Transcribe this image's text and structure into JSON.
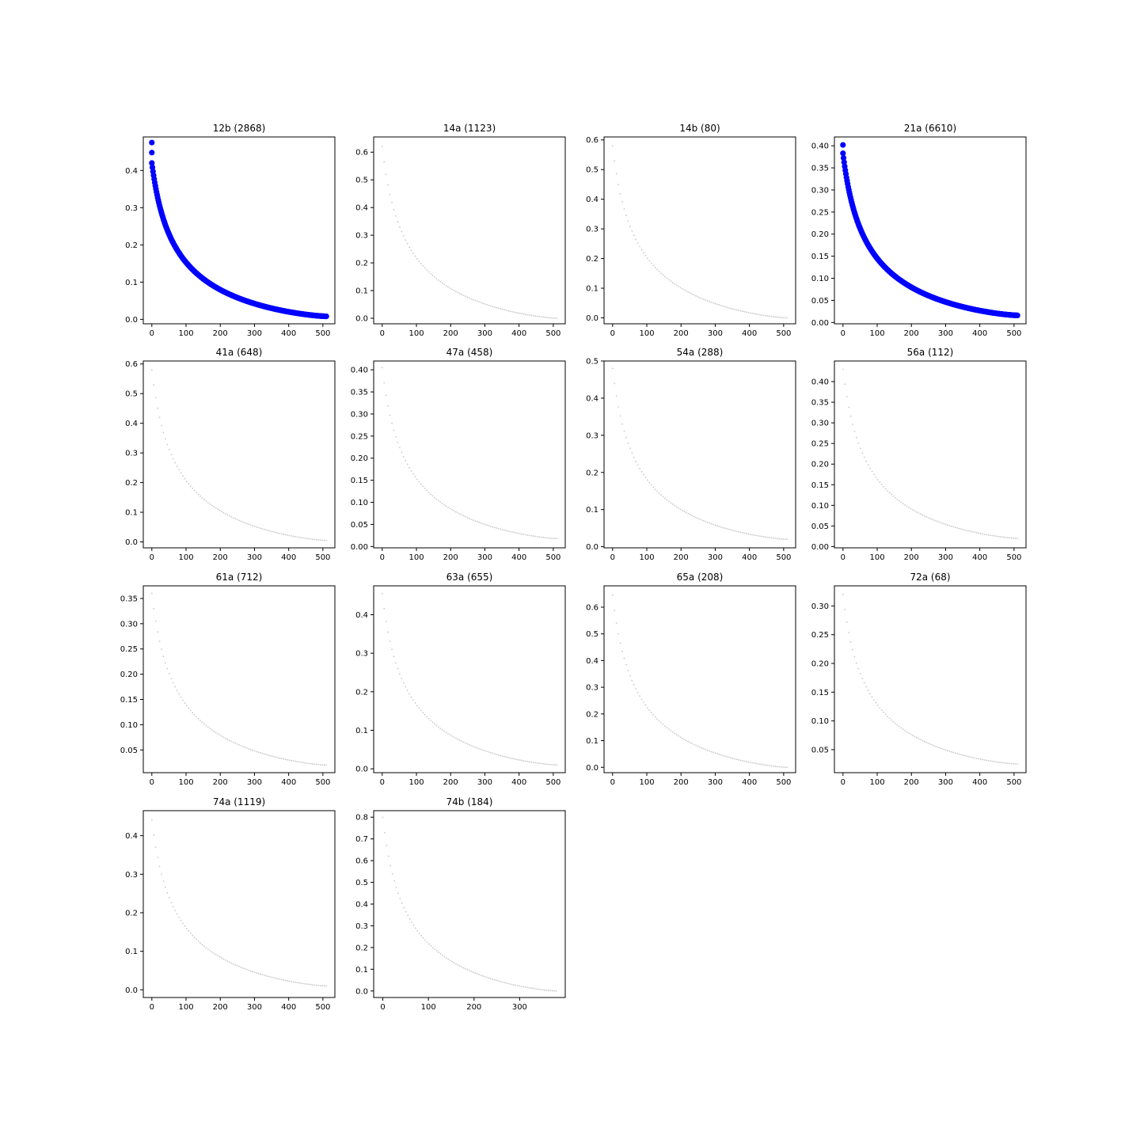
{
  "chart_data": [
    {
      "type": "scatter",
      "title": "12b (2868)",
      "highlight": true,
      "x_ticks": [
        0,
        100,
        200,
        300,
        400,
        500
      ],
      "y_ticks": [
        "0.0",
        "0.1",
        "0.2",
        "0.3",
        "0.4"
      ],
      "ylim": [
        -0.012,
        0.49
      ],
      "xlim": [
        -25,
        535
      ],
      "x_max": 510,
      "y_start": 0.42,
      "y_end": 0.008,
      "y_outliers": [
        0.475,
        0.448
      ]
    },
    {
      "type": "scatter",
      "title": "14a (1123)",
      "highlight": false,
      "x_ticks": [
        0,
        100,
        200,
        300,
        400,
        500
      ],
      "y_ticks": [
        "0.0",
        "0.1",
        "0.2",
        "0.3",
        "0.4",
        "0.5",
        "0.6"
      ],
      "ylim": [
        -0.02,
        0.655
      ],
      "xlim": [
        -25,
        535
      ],
      "x_max": 510,
      "y_start": 0.62,
      "y_end": 0.0
    },
    {
      "type": "scatter",
      "title": "14b (80)",
      "highlight": false,
      "x_ticks": [
        0,
        100,
        200,
        300,
        400,
        500
      ],
      "y_ticks": [
        "0.0",
        "0.1",
        "0.2",
        "0.3",
        "0.4",
        "0.5",
        "0.6"
      ],
      "ylim": [
        -0.02,
        0.61
      ],
      "xlim": [
        -25,
        535
      ],
      "x_max": 510,
      "y_start": 0.58,
      "y_end": 0.0
    },
    {
      "type": "scatter",
      "title": "21a (6610)",
      "highlight": true,
      "x_ticks": [
        0,
        100,
        200,
        300,
        400,
        500
      ],
      "y_ticks": [
        "0.00",
        "0.05",
        "0.10",
        "0.15",
        "0.20",
        "0.25",
        "0.30",
        "0.35",
        "0.40"
      ],
      "ylim": [
        -0.003,
        0.42
      ],
      "xlim": [
        -25,
        535
      ],
      "x_max": 510,
      "y_start": 0.383,
      "y_end": 0.016,
      "y_outliers": [
        0.402
      ]
    },
    {
      "type": "scatter",
      "title": "41a (648)",
      "highlight": false,
      "x_ticks": [
        0,
        100,
        200,
        300,
        400,
        500
      ],
      "y_ticks": [
        "0.0",
        "0.1",
        "0.2",
        "0.3",
        "0.4",
        "0.5",
        "0.6"
      ],
      "ylim": [
        -0.02,
        0.61
      ],
      "xlim": [
        -25,
        535
      ],
      "x_max": 510,
      "y_start": 0.58,
      "y_end": 0.005
    },
    {
      "type": "scatter",
      "title": "47a (458)",
      "highlight": false,
      "x_ticks": [
        0,
        100,
        200,
        300,
        400,
        500
      ],
      "y_ticks": [
        "0.00",
        "0.05",
        "0.10",
        "0.15",
        "0.20",
        "0.25",
        "0.30",
        "0.35",
        "0.40"
      ],
      "ylim": [
        -0.003,
        0.42
      ],
      "xlim": [
        -25,
        535
      ],
      "x_max": 510,
      "y_start": 0.405,
      "y_end": 0.018
    },
    {
      "type": "scatter",
      "title": "54a (288)",
      "highlight": false,
      "x_ticks": [
        0,
        100,
        200,
        300,
        400,
        500
      ],
      "y_ticks": [
        "0.0",
        "0.1",
        "0.2",
        "0.3",
        "0.4",
        "0.5"
      ],
      "ylim": [
        -0.003,
        0.5
      ],
      "xlim": [
        -25,
        535
      ],
      "x_max": 510,
      "y_start": 0.48,
      "y_end": 0.02
    },
    {
      "type": "scatter",
      "title": "56a (112)",
      "highlight": false,
      "x_ticks": [
        0,
        100,
        200,
        300,
        400,
        500
      ],
      "y_ticks": [
        "0.00",
        "0.05",
        "0.10",
        "0.15",
        "0.20",
        "0.25",
        "0.30",
        "0.35",
        "0.40"
      ],
      "ylim": [
        -0.003,
        0.45
      ],
      "xlim": [
        -25,
        535
      ],
      "x_max": 510,
      "y_start": 0.43,
      "y_end": 0.02
    },
    {
      "type": "scatter",
      "title": "61a (712)",
      "highlight": false,
      "x_ticks": [
        0,
        100,
        200,
        300,
        400,
        500
      ],
      "y_ticks": [
        "0.05",
        "0.10",
        "0.15",
        "0.20",
        "0.25",
        "0.30",
        "0.35"
      ],
      "ylim": [
        0.005,
        0.375
      ],
      "xlim": [
        -25,
        535
      ],
      "x_max": 510,
      "y_start": 0.36,
      "y_end": 0.02
    },
    {
      "type": "scatter",
      "title": "63a (655)",
      "highlight": false,
      "x_ticks": [
        0,
        100,
        200,
        300,
        400,
        500
      ],
      "y_ticks": [
        "0.0",
        "0.1",
        "0.2",
        "0.3",
        "0.4"
      ],
      "ylim": [
        -0.01,
        0.475
      ],
      "xlim": [
        -25,
        535
      ],
      "x_max": 510,
      "y_start": 0.455,
      "y_end": 0.01
    },
    {
      "type": "scatter",
      "title": "65a (208)",
      "highlight": false,
      "x_ticks": [
        0,
        100,
        200,
        300,
        400,
        500
      ],
      "y_ticks": [
        "0.0",
        "0.1",
        "0.2",
        "0.3",
        "0.4",
        "0.5",
        "0.6"
      ],
      "ylim": [
        -0.02,
        0.68
      ],
      "xlim": [
        -25,
        535
      ],
      "x_max": 510,
      "y_start": 0.645,
      "y_end": 0.0
    },
    {
      "type": "scatter",
      "title": "72a (68)",
      "highlight": false,
      "x_ticks": [
        0,
        100,
        200,
        300,
        400,
        500
      ],
      "y_ticks": [
        "0.05",
        "0.10",
        "0.15",
        "0.20",
        "0.25",
        "0.30"
      ],
      "ylim": [
        0.01,
        0.335
      ],
      "xlim": [
        -25,
        535
      ],
      "x_max": 510,
      "y_start": 0.32,
      "y_end": 0.025
    },
    {
      "type": "scatter",
      "title": "74a (1119)",
      "highlight": false,
      "x_ticks": [
        0,
        100,
        200,
        300,
        400,
        500
      ],
      "y_ticks": [
        "0.0",
        "0.1",
        "0.2",
        "0.3",
        "0.4"
      ],
      "ylim": [
        -0.02,
        0.465
      ],
      "xlim": [
        -25,
        535
      ],
      "x_max": 510,
      "y_start": 0.44,
      "y_end": 0.01
    },
    {
      "type": "scatter",
      "title": "74b (184)",
      "highlight": false,
      "x_ticks": [
        0,
        100,
        200,
        300
      ],
      "y_ticks": [
        "0.0",
        "0.1",
        "0.2",
        "0.3",
        "0.4",
        "0.5",
        "0.6",
        "0.7",
        "0.8"
      ],
      "ylim": [
        -0.03,
        0.83
      ],
      "xlim": [
        -20,
        400
      ],
      "x_max": 380,
      "y_start": 0.8,
      "y_end": 0.0
    }
  ],
  "colors": {
    "highlight": "#0000ff",
    "dim": "#c8c8c8"
  }
}
